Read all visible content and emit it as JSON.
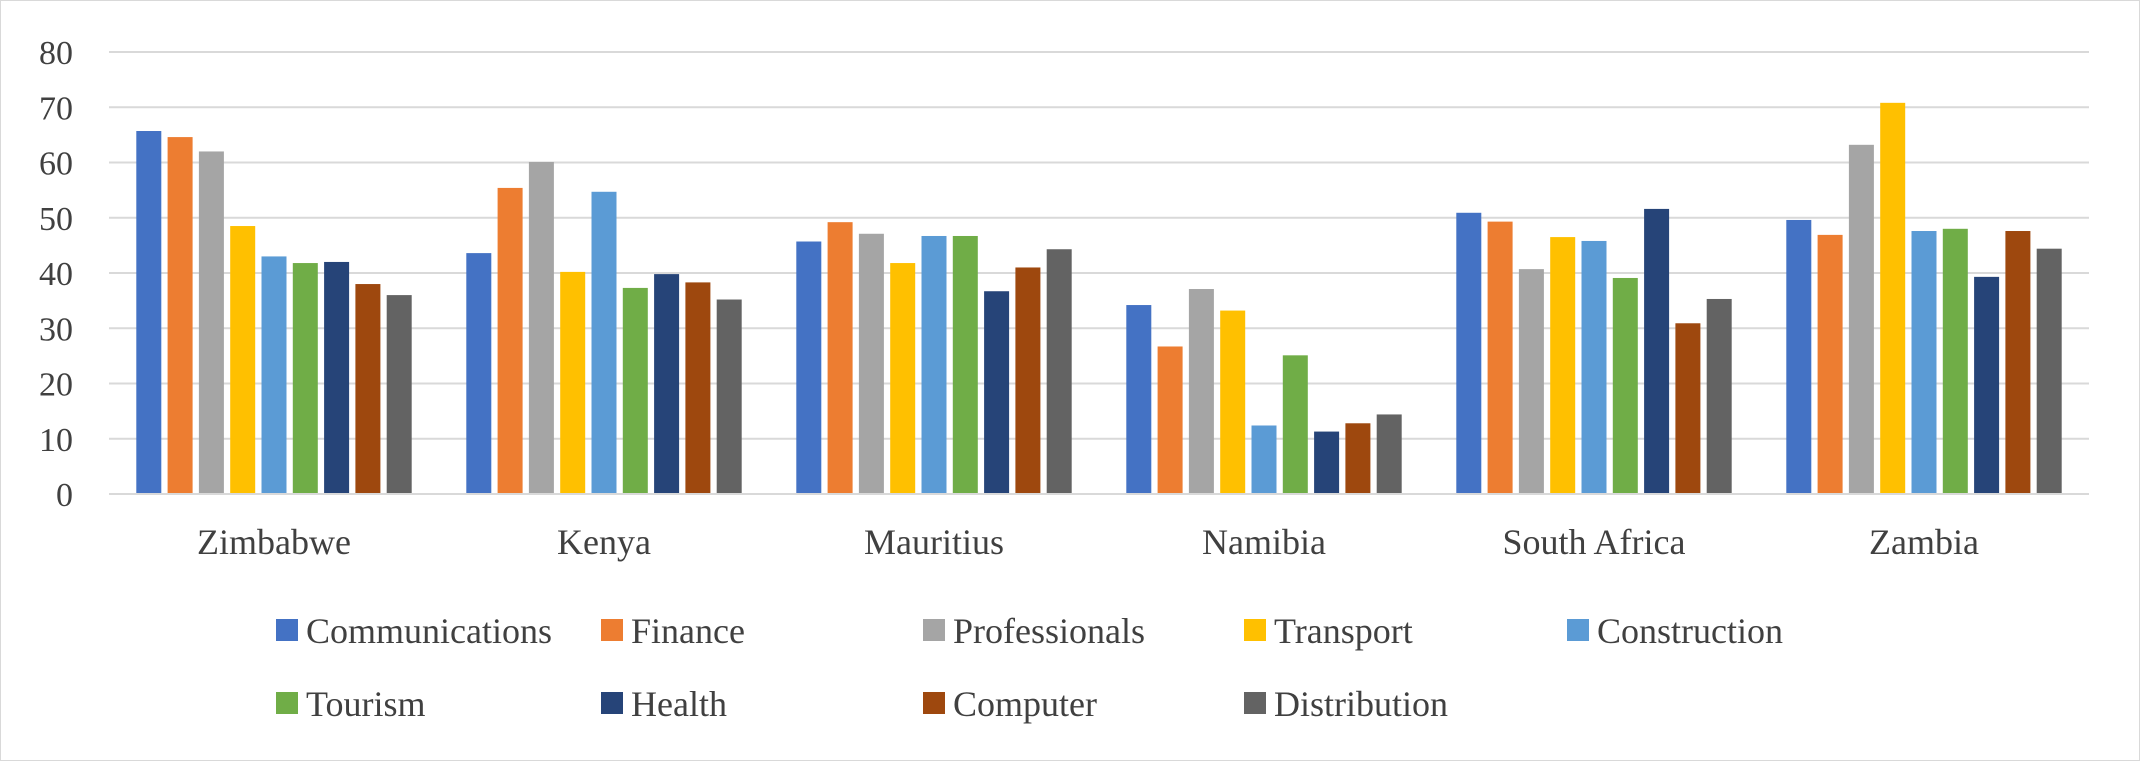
{
  "chart_data": {
    "type": "bar",
    "categories": [
      "Zimbabwe",
      "Kenya",
      "Mauritius",
      "Namibia",
      "South Africa",
      "Zambia"
    ],
    "series": [
      {
        "name": "Communications",
        "color": "#4472C4",
        "values": [
          65.7,
          43.6,
          45.7,
          34.2,
          50.9,
          49.6
        ]
      },
      {
        "name": "Finance",
        "color": "#ED7D31",
        "values": [
          64.6,
          55.4,
          49.2,
          26.7,
          49.3,
          46.9
        ]
      },
      {
        "name": "Professionals",
        "color": "#A5A5A5",
        "values": [
          62.0,
          60.1,
          47.1,
          37.1,
          40.7,
          63.2
        ]
      },
      {
        "name": "Transport",
        "color": "#FFC000",
        "values": [
          48.5,
          40.2,
          41.8,
          33.2,
          46.5,
          70.8
        ]
      },
      {
        "name": "Construction",
        "color": "#5B9BD5",
        "values": [
          43.0,
          54.7,
          46.7,
          12.4,
          45.8,
          47.6
        ]
      },
      {
        "name": "Tourism",
        "color": "#70AD47",
        "values": [
          41.8,
          37.3,
          46.7,
          25.1,
          39.1,
          48.0
        ]
      },
      {
        "name": "Health",
        "color": "#264478",
        "values": [
          42.0,
          39.8,
          36.7,
          11.3,
          51.6,
          39.3
        ]
      },
      {
        "name": "Computer",
        "color": "#9E480E",
        "values": [
          38.0,
          38.3,
          41.0,
          12.8,
          30.9,
          47.6
        ]
      },
      {
        "name": "Distribution",
        "color": "#636363",
        "values": [
          36.0,
          35.2,
          44.3,
          14.4,
          35.3,
          44.4
        ]
      }
    ],
    "ylim": [
      0,
      80
    ],
    "yticks": [
      0,
      10,
      20,
      30,
      40,
      50,
      60,
      70,
      80
    ],
    "grid": true,
    "legend_position": "bottom"
  }
}
